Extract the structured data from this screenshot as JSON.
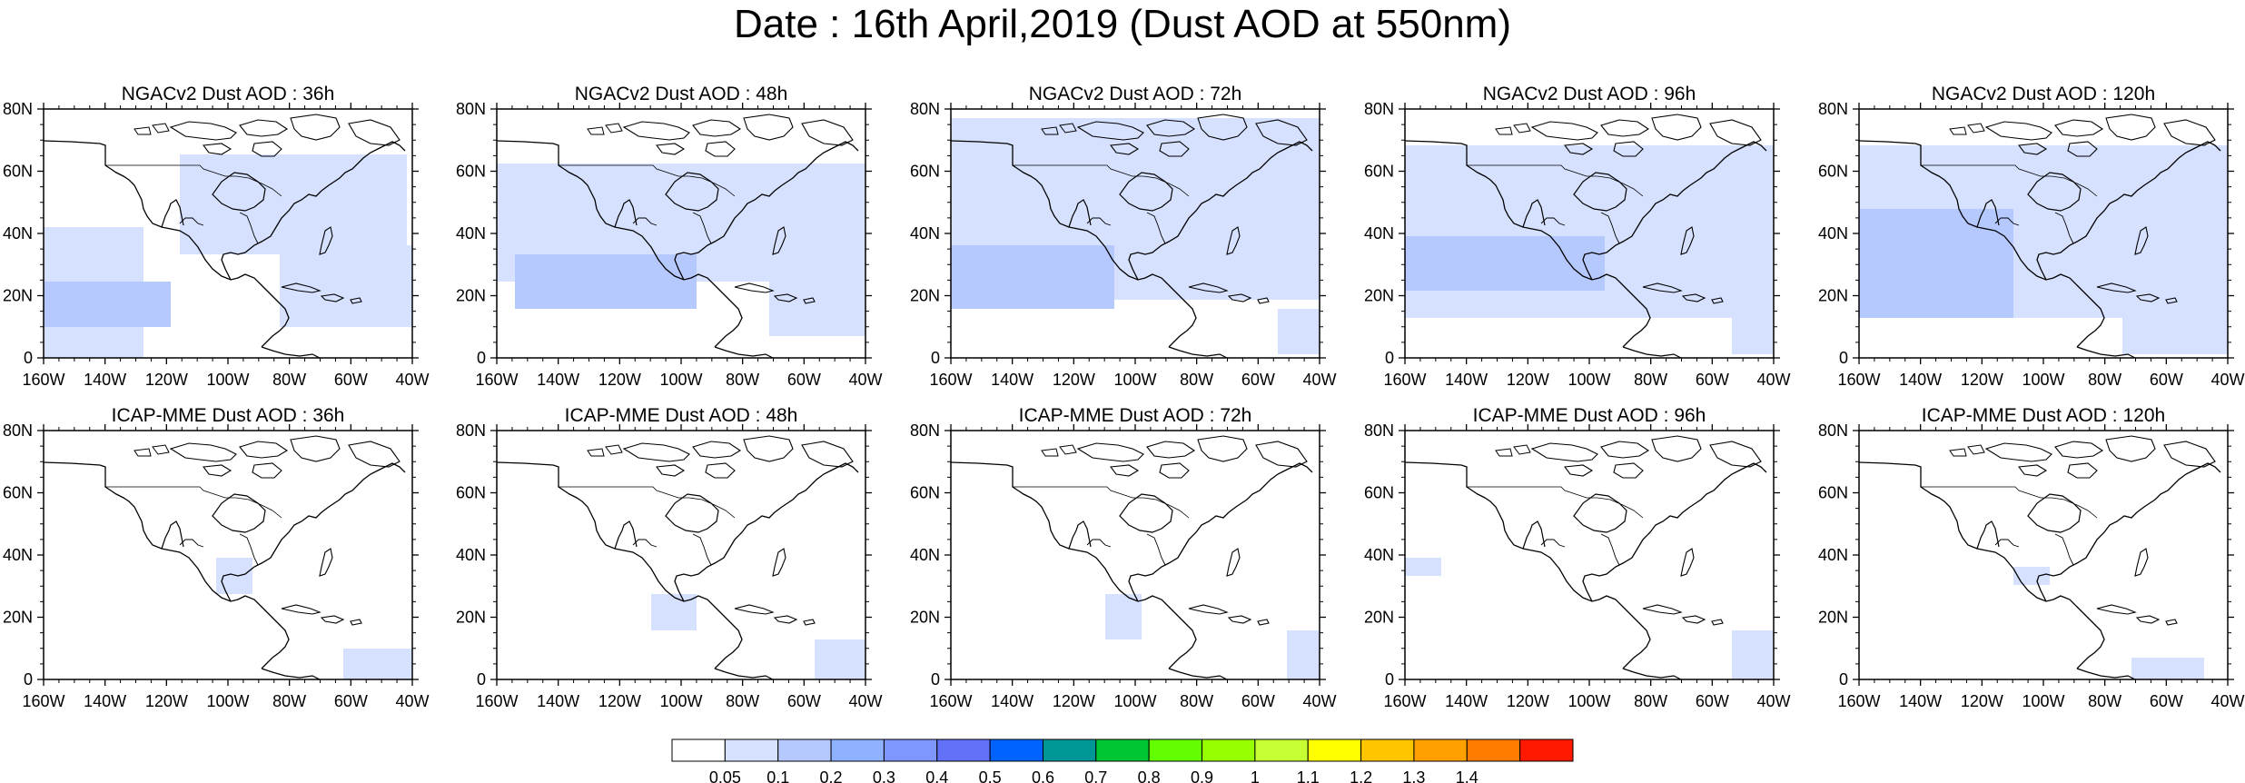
{
  "title": "Date : 16th April,2019 (Dust AOD at 550nm)",
  "axes": {
    "lon_ticks": [
      "160W",
      "140W",
      "120W",
      "100W",
      "80W",
      "60W",
      "40W"
    ],
    "lat_ticks": [
      "80N",
      "60N",
      "40N",
      "20N",
      "0"
    ],
    "lon_range": [
      -160,
      -40
    ],
    "lat_range": [
      0,
      80
    ]
  },
  "rows": [
    {
      "model": "NGACv2",
      "panels": [
        {
          "title": "NGACv2 Dust AOD : 36h",
          "lead_hours": 36
        },
        {
          "title": "NGACv2 Dust AOD : 48h",
          "lead_hours": 48
        },
        {
          "title": "NGACv2 Dust AOD : 72h",
          "lead_hours": 72
        },
        {
          "title": "NGACv2 Dust AOD : 96h",
          "lead_hours": 96
        },
        {
          "title": "NGACv2 Dust AOD : 120h",
          "lead_hours": 120
        }
      ]
    },
    {
      "model": "ICAP-MME",
      "panels": [
        {
          "title": "ICAP-MME Dust AOD : 36h",
          "lead_hours": 36
        },
        {
          "title": "ICAP-MME Dust AOD : 48h",
          "lead_hours": 48
        },
        {
          "title": "ICAP-MME Dust AOD : 72h",
          "lead_hours": 72
        },
        {
          "title": "ICAP-MME Dust AOD : 96h",
          "lead_hours": 96
        },
        {
          "title": "ICAP-MME Dust AOD : 120h",
          "lead_hours": 120
        }
      ]
    }
  ],
  "colorbar": {
    "labels": [
      "0.05",
      "0.1",
      "0.2",
      "0.3",
      "0.4",
      "0.5",
      "0.6",
      "0.7",
      "0.8",
      "0.9",
      "1",
      "1.1",
      "1.2",
      "1.3",
      "1.4"
    ],
    "colors": [
      "#ffffff",
      "#d6e1ff",
      "#b5c9ff",
      "#8eb2ff",
      "#7f96ff",
      "#6370f8",
      "#0063ff",
      "#009696",
      "#00c633",
      "#63ff00",
      "#96ff00",
      "#c6ff33",
      "#ffff00",
      "#ffc600",
      "#ffa000",
      "#ff7c00",
      "#ff1900"
    ]
  }
}
